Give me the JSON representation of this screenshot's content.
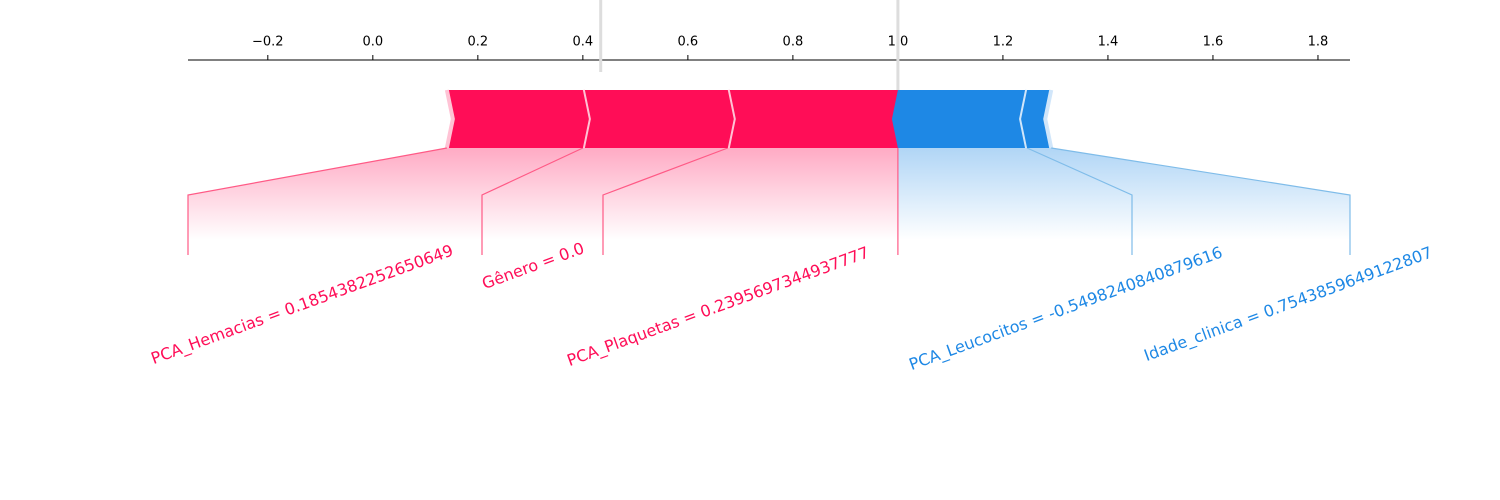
{
  "chart_data": {
    "type": "force",
    "xlim": [
      -0.352,
      1.861
    ],
    "xticks": [
      {
        "value": -0.2,
        "label": "−0.2"
      },
      {
        "value": 0,
        "label": "0.0"
      },
      0.2,
      0.4,
      0.6,
      0.8,
      {
        "value": 1,
        "label": "1.0"
      },
      1.2,
      1.4,
      1.6,
      1.8
    ],
    "base_value": 0.434,
    "output_value": 1.0,
    "output_label": "1.00",
    "positive_color": "#ff0d57",
    "negative_color": "#1e88e5",
    "features": [
      {
        "label": "PCA_Plaquetas = 0.2395697344937777",
        "effect": 0.324
      },
      {
        "label": "Gênero = 0.0",
        "effect": 0.276
      },
      {
        "label": "PCA_Hemacias = 0.1854382252650649",
        "effect": 0.259
      },
      {
        "label": "PCA_Leucocitos = -0.5498240840879616",
        "effect": -0.246
      },
      {
        "label": "Idade_clinica = 0.7543859649122807",
        "effect": -0.046
      }
    ]
  }
}
